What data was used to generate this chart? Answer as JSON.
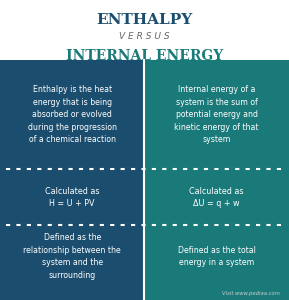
{
  "title1": "ENTHALPY",
  "versus": "V E R S U S",
  "title2": "INTERNAL ENERGY",
  "title1_color": "#1a4d6e",
  "versus_color": "#666666",
  "title2_color": "#1a7a7a",
  "left_bg": "#1a4d6e",
  "right_bg": "#1a7a7a",
  "header_bg": "#ffffff",
  "text_color": "#ffffff",
  "left_row1": "Enthalpy is the heat\nenergy that is being\nabsorbed or evolved\nduring the progression\nof a chemical reaction",
  "right_row1": "Internal energy of a\nsystem is the sum of\npotential energy and\nkinetic energy of that\nsystem",
  "left_row2": "Calculated as\nH = U + PV",
  "right_row2": "Calculated as\nΔU = q + w",
  "left_row3": "Defined as the\nrelationship between the\nsystem and the\nsurrounding",
  "right_row3": "Defined as the total\nenergy in a system",
  "watermark": "Visit www.pediaa.com",
  "dot_color": "#ffffff",
  "figsize": [
    2.89,
    3.0
  ],
  "dpi": 100
}
